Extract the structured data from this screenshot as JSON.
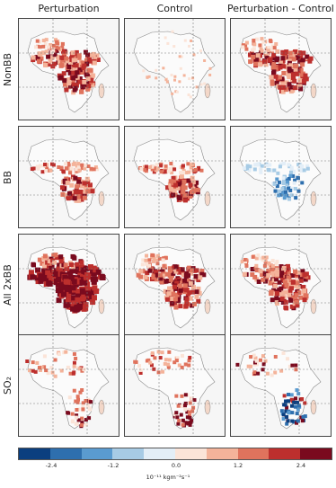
{
  "columns": [
    "Perturbation",
    "Control",
    "Perturbation - Control"
  ],
  "rows": [
    "NonBB",
    "BB",
    "All 2xBB",
    "SO₂"
  ],
  "panels": [
    [
      "strong-red",
      "faint-red",
      "strong-red"
    ],
    [
      "moderate-red",
      "moderate-red",
      "light-blue"
    ],
    [
      "very-strong-red",
      "strong-red",
      "strong-red"
    ],
    [
      "sparse-mixed",
      "sparse-mixed",
      "mixed-blue-red"
    ]
  ],
  "colorbar": {
    "colors": [
      "#0b3f7f",
      "#2e6fae",
      "#5a9bd0",
      "#a7cbe5",
      "#e3eef7",
      "#fbe4d8",
      "#f4b39a",
      "#e0735d",
      "#bd2f2d",
      "#7a0a1e"
    ],
    "ticks": [
      "-2.4",
      "-1.2",
      "0.0",
      "1.2",
      "2.4"
    ],
    "units": "10⁻¹¹ kgm⁻²s⁻¹"
  }
}
